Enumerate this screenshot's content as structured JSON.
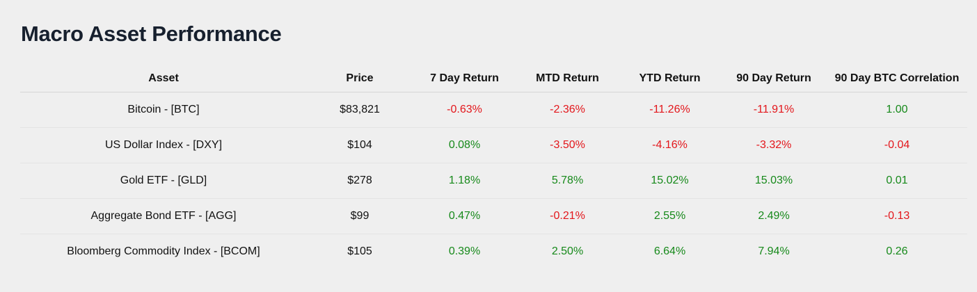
{
  "title": "Macro Asset Performance",
  "colors": {
    "background": "#efefef",
    "positive": "#16891a",
    "negative": "#e3161b",
    "title": "#17202e"
  },
  "chart_data": {
    "type": "table",
    "title": "Macro Asset Performance",
    "columns": [
      "Asset",
      "Price",
      "7 Day Return",
      "MTD Return",
      "YTD Return",
      "90 Day Return",
      "90 Day BTC Correlation"
    ],
    "rows": [
      [
        "Bitcoin - [BTC]",
        "$83,821",
        "-0.63%",
        "-2.36%",
        "-11.26%",
        "-11.91%",
        "1.00"
      ],
      [
        "US Dollar Index - [DXY]",
        "$104",
        "0.08%",
        "-3.50%",
        "-4.16%",
        "-3.32%",
        "-0.04"
      ],
      [
        "Gold ETF - [GLD]",
        "$278",
        "1.18%",
        "5.78%",
        "15.02%",
        "15.03%",
        "0.01"
      ],
      [
        "Aggregate Bond ETF - [AGG]",
        "$99",
        "0.47%",
        "-0.21%",
        "2.55%",
        "2.49%",
        "-0.13"
      ],
      [
        "Bloomberg Commodity Index - [BCOM]",
        "$105",
        "0.39%",
        "2.50%",
        "6.64%",
        "7.94%",
        "0.26"
      ]
    ]
  }
}
